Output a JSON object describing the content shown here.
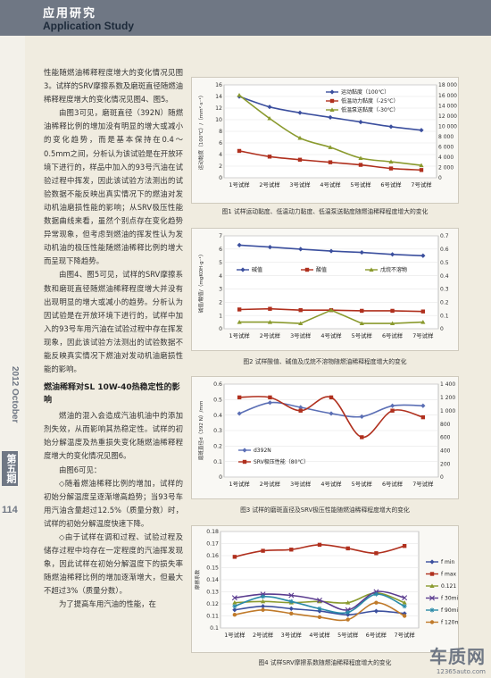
{
  "header": {
    "section_cn": "应用研究",
    "section_en": "Application Study"
  },
  "sidebar": {
    "year_month": "2012 October",
    "issue": "第五期",
    "page": "114"
  },
  "body": {
    "paragraphs_1": [
      "性能随燃油稀释程度增大的变化情况见图3。试样的SRV摩擦系数及磨斑直径随燃油稀释程度增大的变化情况见图4、图5。",
      "由图3可见，磨斑直径（392N）随燃油稀释比例的增加没有明显的增大或减小的变化趋势，而是基本保持在0.4～0.5mm之间，分析认为该试验是在开放环境下进行的，样品中加入的93号汽油在试验过程中挥发，因此该试验方法测出的试验数据不能反映出真实情况下的燃油对发动机油磨损性能的影响；从SRV极压性能数据曲线来看，虽然个别点存在变化趋势异常现象，但考虑到燃油的挥发性认为发动机油的极压性能随燃油稀释比例的增大而呈现下降趋势。",
      "由图4、图5可见，试样的SRV摩擦系数和磨斑直径随燃油稀释程度增大并没有出现明显的增大或减小的趋势。分析认为因试验是在开放环境下进行的，试样中加入的93号车用汽油在试验过程中存在挥发现象，因此该试验方法测出的试验数据不能反映真实情况下燃油对发动机油磨损性能的影响。"
    ],
    "heading": "燃油稀释对SL 10W-40热稳定性的影响",
    "paragraphs_2": [
      "燃油的混入会造成汽油机油中的添加剂失效，从而影响其热稳定性。试样的初始分解温度及热重损失变化随燃油稀释程度增大的变化情况见图6。",
      "由图6可见：",
      "◇随着燃油稀释比例的增加，试样的初始分解温度呈逐渐增高趋势；当93号车用汽油含量超过12.5%（质量分数）时，试样的初始分解温度快速下降。",
      "◇由于试样在调和过程、试验过程及储存过程中均存在一定程度的汽油挥发现象，因此试样在初始分解温度下的损失率随燃油稀释比例的增加逐渐增大，但最大不超过3%（质量分数）。",
      "为了提高车用汽油的性能，在"
    ]
  },
  "figures": [
    {
      "caption": "图1  试样运动黏度、低温动力黏度、低温泵送黏度随燃油稀释程度增大的变化"
    },
    {
      "caption": "图2  试样酸值、碱值及戊烷不溶物随燃油稀释程度增大的变化"
    },
    {
      "caption": "图3  试样的磨斑直径及SRV极压性能随燃油稀释程度增大的变化"
    },
    {
      "caption": "图4  试样SRV摩擦系数随燃油稀释程度增大的变化"
    }
  ],
  "chart_data": [
    {
      "type": "line",
      "categories": [
        "1号试样",
        "2号试样",
        "3号试样",
        "4号试样",
        "5号试样",
        "6号试样",
        "7号试样"
      ],
      "ylabel": "运动黏度（100℃）/（mm²·s⁻¹）",
      "ylabel_right": "-25℃低温动力黏度/（mPa·s）  （-30℃低温泵送黏度）",
      "ylim": [
        0,
        16
      ],
      "yticks": [
        "0",
        "2",
        "4",
        "6",
        "8",
        "10",
        "12",
        "14",
        "16"
      ],
      "ylim_right": [
        0,
        18000
      ],
      "yticks_right": [
        "0",
        "2 000",
        "4 000",
        "6 000",
        "8 000",
        "10 000",
        "12 000",
        "14 000",
        "16 000",
        "18 000"
      ],
      "legend_position": "top-right",
      "series": [
        {
          "name": "运动黏度（100℃）",
          "axis": "left",
          "color": "#3b4f9e",
          "marker": "diamond",
          "values": [
            14.0,
            12.2,
            11.2,
            10.4,
            9.6,
            8.8,
            8.2
          ]
        },
        {
          "name": "低温动力黏度（-25℃）",
          "axis": "right",
          "color": "#b0301e",
          "marker": "square",
          "values": [
            5200,
            4100,
            3500,
            3000,
            2500,
            1800,
            1500
          ]
        },
        {
          "name": "低温泵送黏度（-30℃）",
          "axis": "right",
          "color": "#8a9a2e",
          "marker": "triangle",
          "values": [
            16000,
            11500,
            7700,
            5900,
            3800,
            3100,
            2400
          ]
        }
      ]
    },
    {
      "type": "line",
      "categories": [
        "1号试样",
        "2号试样",
        "3号试样",
        "4号试样",
        "5号试样",
        "6号试样",
        "7号试样"
      ],
      "ylabel": "碱值/酸值/（mgKOH·g⁻¹）",
      "ylabel_right": "戊烷不溶物/（质量分数）/%",
      "ylim": [
        0,
        7
      ],
      "yticks": [
        "0",
        "1",
        "2",
        "3",
        "4",
        "5",
        "6",
        "7"
      ],
      "ylim_right": [
        0,
        0.7
      ],
      "yticks_right": [
        "0",
        "0.1",
        "0.2",
        "0.3",
        "0.4",
        "0.5",
        "0.6",
        "0.7"
      ],
      "legend_position": "center",
      "series": [
        {
          "name": "碱值",
          "axis": "left",
          "color": "#3b4f9e",
          "marker": "diamond",
          "values": [
            6.3,
            6.15,
            6.0,
            5.85,
            5.75,
            5.6,
            5.5
          ]
        },
        {
          "name": "酸值",
          "axis": "left",
          "color": "#b0301e",
          "marker": "square",
          "values": [
            1.45,
            1.5,
            1.4,
            1.4,
            1.35,
            1.35,
            1.3
          ]
        },
        {
          "name": "戊烷不溶物",
          "axis": "right",
          "color": "#8a9a2e",
          "marker": "triangle",
          "values": [
            0.05,
            0.05,
            0.04,
            0.14,
            0.04,
            0.04,
            0.05
          ]
        }
      ]
    },
    {
      "type": "line",
      "categories": [
        "1号试样",
        "2号试样",
        "3号试样",
        "4号试样",
        "5号试样",
        "6号试样",
        "7号试样"
      ],
      "ylabel": "磨斑直径d（392 N）/mm",
      "ylabel_right": "SRV极压性能（80℃）/N",
      "ylim": [
        0,
        0.6
      ],
      "yticks": [
        "0",
        "0.1",
        "0.2",
        "0.3",
        "0.4",
        "0.5",
        "0.6"
      ],
      "ylim_right": [
        0,
        1400
      ],
      "yticks_right": [
        "0",
        "200",
        "400",
        "600",
        "800",
        "1 000",
        "1 200",
        "1 400"
      ],
      "legend_position": "bottom-left",
      "series": [
        {
          "name": "d392N",
          "axis": "left",
          "color": "#5b6fb5",
          "marker": "diamond",
          "values": [
            0.41,
            0.48,
            0.45,
            0.41,
            0.39,
            0.46,
            0.46
          ]
        },
        {
          "name": "SRV极压性能（80℃）",
          "axis": "right",
          "color": "#b0301e",
          "marker": "square",
          "values": [
            1200,
            1200,
            1000,
            1200,
            600,
            1000,
            900
          ]
        }
      ]
    },
    {
      "type": "line",
      "categories": [
        "1号试样",
        "2号试样",
        "3号试样",
        "4号试样",
        "5号试样",
        "6号试样",
        "7号试样"
      ],
      "ylabel": "摩擦系数",
      "ylim": [
        0.1,
        0.18
      ],
      "yticks": [
        "0.1",
        "0.11",
        "0.12",
        "0.13",
        "0.14",
        "0.15",
        "0.16",
        "0.17",
        "0.18"
      ],
      "legend_position": "right",
      "series": [
        {
          "name": "f min",
          "color": "#3b4f9e",
          "marker": "diamond",
          "values": [
            0.115,
            0.118,
            0.116,
            0.114,
            0.111,
            0.114,
            0.112
          ]
        },
        {
          "name": "f max",
          "color": "#b0301e",
          "marker": "square",
          "values": [
            0.159,
            0.164,
            0.165,
            0.169,
            0.166,
            0.162,
            0.168
          ]
        },
        {
          "name": "0.121",
          "color": "#8a9a2e",
          "marker": "triangle",
          "values": [
            0.121,
            0.122,
            0.121,
            0.122,
            0.121,
            0.129,
            0.121
          ]
        },
        {
          "name": "f 30min",
          "color": "#5a3b8f",
          "marker": "x",
          "values": [
            0.125,
            0.128,
            0.127,
            0.123,
            0.115,
            0.13,
            0.125
          ]
        },
        {
          "name": "f 90min",
          "color": "#2a8aa8",
          "marker": "star",
          "values": [
            0.118,
            0.126,
            0.122,
            0.116,
            0.113,
            0.128,
            0.118
          ]
        },
        {
          "name": "f 120min",
          "color": "#c07a2a",
          "marker": "circle",
          "values": [
            0.111,
            0.115,
            0.112,
            0.109,
            0.107,
            0.121,
            0.11
          ]
        }
      ]
    }
  ],
  "watermark": {
    "logo": "车质网",
    "url": "12365auto.com"
  }
}
